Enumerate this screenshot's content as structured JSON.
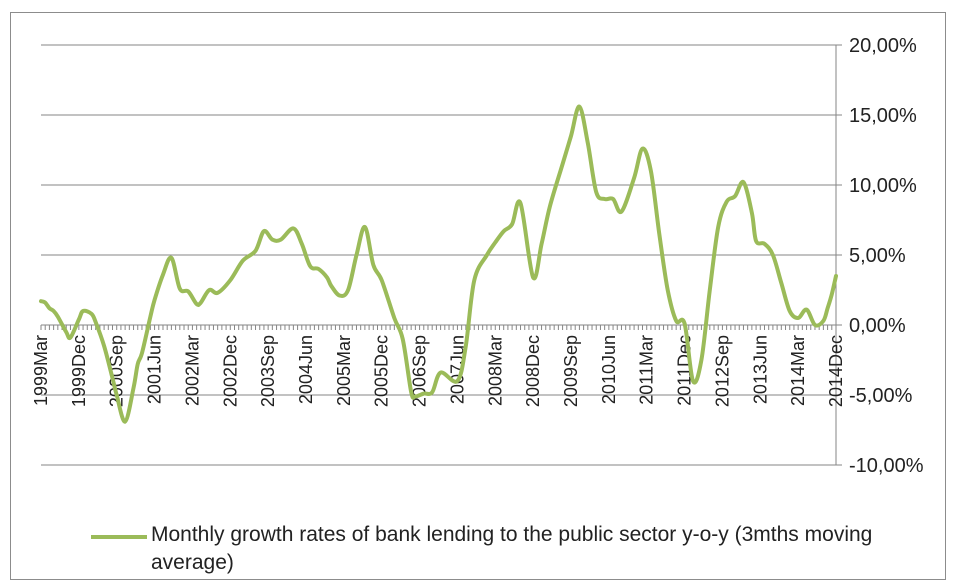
{
  "chart_data": {
    "type": "line",
    "title": "",
    "xlabel": "",
    "ylabel": "",
    "ylim": [
      -10,
      20
    ],
    "y_ticks": [
      -10,
      -5,
      0,
      5,
      10,
      15,
      20
    ],
    "y_tick_labels": [
      "-10,00%",
      "-5,00%",
      "0,00%",
      "5,00%",
      "10,00%",
      "15,00%",
      "20,00%"
    ],
    "y_axis_position": "right",
    "grid": true,
    "legend": "bottom",
    "x_tick_labels": [
      "1999Mar",
      "1999Dec",
      "2000Sep",
      "2001Jun",
      "2002Mar",
      "2002Dec",
      "2003Sep",
      "2004Jun",
      "2005Mar",
      "2005Dec",
      "2006Sep",
      "2007Jun",
      "2008Mar",
      "2008Dec",
      "2009Sep",
      "2010Jun",
      "2011Mar",
      "2011Dec",
      "2012Sep",
      "2013Jun",
      "2014Mar",
      "2014Dec"
    ],
    "series": [
      {
        "name": "Monthly growth rates of bank lending to the public sector y-o-y (3mths moving average)",
        "color": "#9bbb59",
        "x_start": "1999Mar",
        "x_end": "2014Dec",
        "points": [
          [
            "1999Mar",
            1.7
          ],
          [
            "1999Apr",
            1.6
          ],
          [
            "1999May",
            1.2
          ],
          [
            "1999Jun",
            1.0
          ],
          [
            "1999Jul",
            0.6
          ],
          [
            "1999Sep",
            -0.5
          ],
          [
            "1999Oct",
            -0.9
          ],
          [
            "1999Dec",
            0.4
          ],
          [
            "2000Jan",
            1.0
          ],
          [
            "2000Mar",
            0.8
          ],
          [
            "2000Apr",
            0.2
          ],
          [
            "2000Jun",
            -1.5
          ],
          [
            "2000Aug",
            -3.8
          ],
          [
            "2000Sep",
            -5.0
          ],
          [
            "2000Nov",
            -6.9
          ],
          [
            "2001Jan",
            -4.5
          ],
          [
            "2001Feb",
            -2.8
          ],
          [
            "2001Mar",
            -2.0
          ],
          [
            "2001May",
            0.6
          ],
          [
            "2001Jun",
            1.8
          ],
          [
            "2001Aug",
            3.6
          ],
          [
            "2001Oct",
            4.8
          ],
          [
            "2001Dec",
            2.6
          ],
          [
            "2002Feb",
            2.4
          ],
          [
            "2002Apr",
            1.5
          ],
          [
            "2002May",
            1.6
          ],
          [
            "2002Jul",
            2.5
          ],
          [
            "2002Sep",
            2.3
          ],
          [
            "2002Dec",
            3.2
          ],
          [
            "2003Mar",
            4.6
          ],
          [
            "2003Jun",
            5.3
          ],
          [
            "2003Aug",
            6.7
          ],
          [
            "2003Oct",
            6.1
          ],
          [
            "2003Dec",
            6.1
          ],
          [
            "2004Mar",
            6.9
          ],
          [
            "2004May",
            5.8
          ],
          [
            "2004Jul",
            4.2
          ],
          [
            "2004Sep",
            4.0
          ],
          [
            "2004Nov",
            3.4
          ],
          [
            "2004Dec",
            2.8
          ],
          [
            "2005Feb",
            2.1
          ],
          [
            "2005Apr",
            2.5
          ],
          [
            "2005Jun",
            5.0
          ],
          [
            "2005Aug",
            7.0
          ],
          [
            "2005Oct",
            4.3
          ],
          [
            "2005Dec",
            3.2
          ],
          [
            "2006Mar",
            0.5
          ],
          [
            "2006May",
            -1.0
          ],
          [
            "2006Jul",
            -4.8
          ],
          [
            "2006Aug",
            -5.1
          ],
          [
            "2006Oct",
            -4.9
          ],
          [
            "2006Dec",
            -4.8
          ],
          [
            "2007Feb",
            -3.4
          ],
          [
            "2007Jun",
            -4.0
          ],
          [
            "2007Aug",
            -1.5
          ],
          [
            "2007Oct",
            3.2
          ],
          [
            "2008Jan",
            5.0
          ],
          [
            "2008Mar",
            5.9
          ],
          [
            "2008May",
            6.7
          ],
          [
            "2008Jul",
            7.2
          ],
          [
            "2008Sep",
            8.7
          ],
          [
            "2008Dec",
            3.4
          ],
          [
            "2009Feb",
            5.8
          ],
          [
            "2009Apr",
            8.5
          ],
          [
            "2009Jul",
            11.5
          ],
          [
            "2009Sep",
            13.5
          ],
          [
            "2009Nov",
            15.6
          ],
          [
            "2010Jan",
            13.0
          ],
          [
            "2010Mar",
            9.5
          ],
          [
            "2010May",
            9.0
          ],
          [
            "2010Jul",
            9.0
          ],
          [
            "2010Sep",
            8.1
          ],
          [
            "2010Dec",
            10.5
          ],
          [
            "2011Feb",
            12.6
          ],
          [
            "2011Apr",
            11.0
          ],
          [
            "2011Jun",
            6.5
          ],
          [
            "2011Aug",
            2.5
          ],
          [
            "2011Oct",
            0.3
          ],
          [
            "2011Dec",
            0.1
          ],
          [
            "2012Feb",
            -4.0
          ],
          [
            "2012Apr",
            -2.5
          ],
          [
            "2012Jun",
            2.5
          ],
          [
            "2012Aug",
            7.0
          ],
          [
            "2012Oct",
            8.8
          ],
          [
            "2012Dec",
            9.2
          ],
          [
            "2013Feb",
            10.2
          ],
          [
            "2013Apr",
            8.0
          ],
          [
            "2013May",
            6.0
          ],
          [
            "2013Jul",
            5.8
          ],
          [
            "2013Sep",
            5.0
          ],
          [
            "2013Nov",
            3.0
          ],
          [
            "2014Jan",
            1.0
          ],
          [
            "2014Mar",
            0.5
          ],
          [
            "2014May",
            1.1
          ],
          [
            "2014Jul",
            0.0
          ],
          [
            "2014Sep",
            0.3
          ],
          [
            "2014Oct",
            1.2
          ],
          [
            "2014Nov",
            2.2
          ],
          [
            "2014Dec",
            3.5
          ]
        ]
      }
    ]
  }
}
